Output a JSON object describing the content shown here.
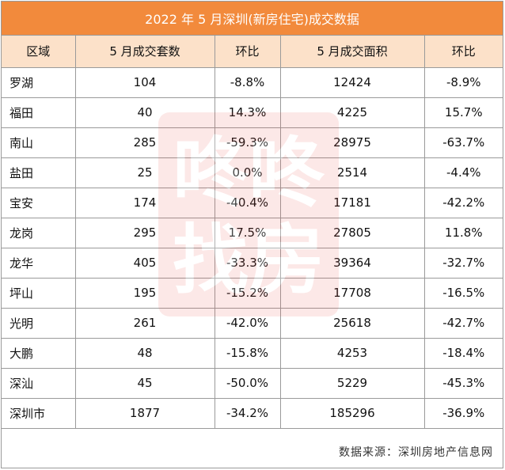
{
  "title": "2022 年 5 月深圳(新房住宅)成交数据",
  "headers": [
    "区域",
    "5 月成交套数",
    "环比",
    "5 月成交面积",
    "环比"
  ],
  "rows": [
    [
      "罗湖",
      "104",
      "-8.8%",
      "12424",
      "-8.9%"
    ],
    [
      "福田",
      "40",
      "14.3%",
      "4225",
      "15.7%"
    ],
    [
      "南山",
      "285",
      "-59.3%",
      "28975",
      "-63.7%"
    ],
    [
      "盐田",
      "25",
      "0.0%",
      "2514",
      "-4.4%"
    ],
    [
      "宝安",
      "174",
      "-40.4%",
      "17181",
      "-42.2%"
    ],
    [
      "龙岗",
      "295",
      "17.5%",
      "27805",
      "11.8%"
    ],
    [
      "龙华",
      "405",
      "-33.3%",
      "39364",
      "-32.7%"
    ],
    [
      "坪山",
      "195",
      "-15.2%",
      "17708",
      "-16.5%"
    ],
    [
      "光明",
      "261",
      "-42.0%",
      "25618",
      "-42.7%"
    ],
    [
      "大鹏",
      "48",
      "-15.8%",
      "4253",
      "-18.4%"
    ],
    [
      "深汕",
      "45",
      "-50.0%",
      "5229",
      "-45.3%"
    ],
    [
      "深圳市",
      "1877",
      "-34.2%",
      "185296",
      "-36.9%"
    ]
  ],
  "source": "数据来源：深圳房地产信息网",
  "watermark": {
    "text_top": "咚咚",
    "text_bottom": "找房",
    "color": "#e8463c"
  },
  "colors": {
    "title_bg": "#f28a3c",
    "header_bg": "#fce1c9",
    "border": "#9a9a9a"
  }
}
